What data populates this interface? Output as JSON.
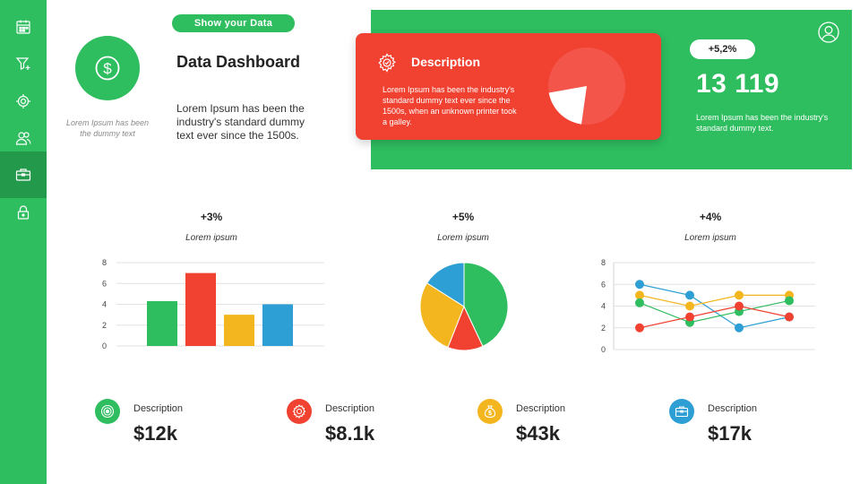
{
  "sidebar": {
    "items": [
      {
        "icon": "calendar-icon"
      },
      {
        "icon": "funnel-icon"
      },
      {
        "icon": "gear-icon"
      },
      {
        "icon": "users-icon"
      },
      {
        "icon": "briefcase-icon",
        "active": true
      },
      {
        "icon": "lock-icon"
      }
    ]
  },
  "header": {
    "pill_label": "Show your Data",
    "title": "Data Dashboard",
    "body": "Lorem Ipsum has been the industry's standard dummy text ever since the 1500s.",
    "left_caption": "Lorem Ipsum has been the dummy text",
    "dollar_symbol": "$"
  },
  "red_card": {
    "title": "Description",
    "body": "Lorem Ipsum has been the industry's standard dummy text ever since the 1500s, when an unknown printer took a galley."
  },
  "green_panel": {
    "pct": "+5,2%",
    "big_number": "13 119",
    "body": "Lorem Ipsum has been the industry's standard dummy text."
  },
  "charts": [
    {
      "pct": "+3%",
      "subtitle": "Lorem ipsum"
    },
    {
      "pct": "+5%",
      "subtitle": "Lorem ipsum"
    },
    {
      "pct": "+4%",
      "subtitle": "Lorem ipsum"
    }
  ],
  "chart_data": [
    {
      "type": "pie",
      "values": [
        80,
        20
      ],
      "colors": [
        "#f4554a",
        "#ffffff"
      ]
    },
    {
      "type": "bar",
      "categories": [
        "",
        "",
        "",
        ""
      ],
      "values": [
        4.3,
        7.0,
        3.0,
        4.0
      ],
      "colors": [
        "#2ebd5f",
        "#f04131",
        "#f3b61f",
        "#2e9fd4"
      ],
      "yticks": [
        "0",
        "2",
        "4",
        "6",
        "8"
      ],
      "ylim": [
        0,
        8
      ],
      "grid": true
    },
    {
      "type": "pie",
      "values": [
        43,
        13,
        28,
        16
      ],
      "colors": [
        "#2ebd5f",
        "#f04131",
        "#f3b61f",
        "#2e9fd4"
      ]
    },
    {
      "type": "line",
      "x": [
        1,
        2,
        3,
        4
      ],
      "series": [
        {
          "color": "#2e9fd4",
          "values": [
            6,
            5,
            2,
            3
          ]
        },
        {
          "color": "#f3b61f",
          "values": [
            5,
            4,
            5,
            5
          ]
        },
        {
          "color": "#2ebd5f",
          "values": [
            4.3,
            2.5,
            3.5,
            4.5
          ]
        },
        {
          "color": "#f04131",
          "values": [
            2,
            3,
            4,
            3
          ]
        }
      ],
      "yticks": [
        "0",
        "2",
        "4",
        "6",
        "8"
      ],
      "ylim": [
        0,
        8
      ],
      "grid": true
    }
  ],
  "stats": [
    {
      "icon": "target-icon",
      "color": "#2ebd5f",
      "label": "Description",
      "value": "$12k"
    },
    {
      "icon": "gear-icon",
      "color": "#f04131",
      "label": "Description",
      "value": "$8.1k"
    },
    {
      "icon": "money-bag-icon",
      "color": "#f3b61f",
      "label": "Description",
      "value": "$43k"
    },
    {
      "icon": "briefcase-icon",
      "color": "#2e9fd4",
      "label": "Description",
      "value": "$17k"
    }
  ]
}
